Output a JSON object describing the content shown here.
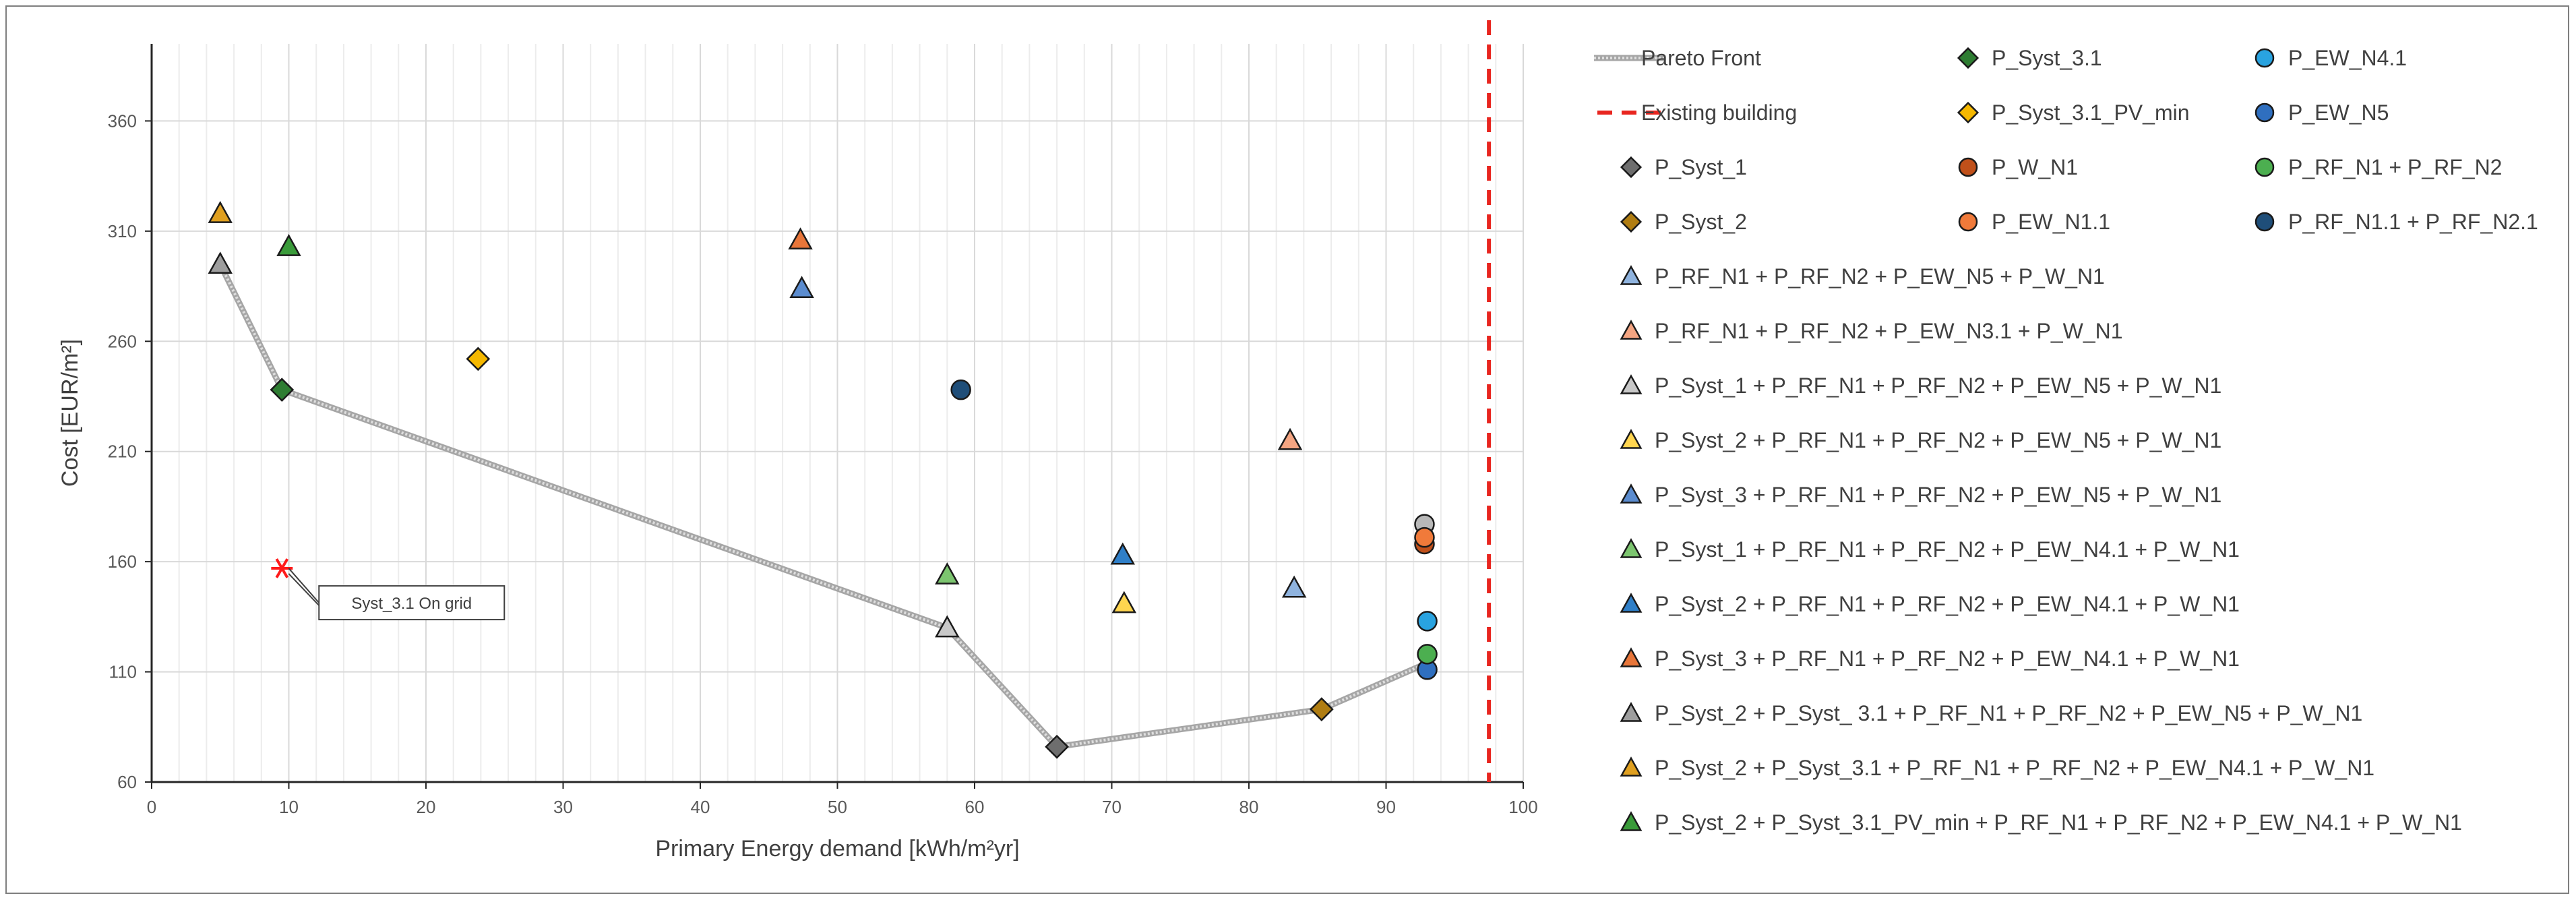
{
  "chart_data": {
    "type": "scatter",
    "title": "",
    "xlabel": "Primary Energy demand [kWh/m²yr]",
    "ylabel": "Cost [EUR/m²]",
    "xlim": [
      0,
      100
    ],
    "ylim": [
      60,
      395
    ],
    "x_ticks": [
      "0",
      "10",
      "20",
      "30",
      "40",
      "50",
      "60",
      "70",
      "80",
      "90",
      "100"
    ],
    "y_ticks": [
      "60",
      "110",
      "160",
      "210",
      "260",
      "310",
      "360"
    ],
    "x_tick_values": [
      0,
      10,
      20,
      30,
      40,
      50,
      60,
      70,
      80,
      90,
      100
    ],
    "y_tick_values": [
      60,
      110,
      160,
      210,
      260,
      310,
      360
    ],
    "grid": true,
    "pareto_front": {
      "name": "Pareto Front",
      "points": [
        [
          5,
          295
        ],
        [
          9.5,
          238
        ],
        [
          58,
          130
        ],
        [
          66,
          76
        ],
        [
          85.3,
          93
        ],
        [
          93,
          114
        ]
      ]
    },
    "existing_building": {
      "name": "Existing building",
      "x": 97.5
    },
    "annotation": {
      "text": "Syst_3.1 On grid",
      "x": 9.5,
      "y": 157
    },
    "series": [
      {
        "name": "P_Syst_3.1",
        "marker": "diamond",
        "color": "#2e7d32",
        "points": [
          [
            9.5,
            238
          ]
        ]
      },
      {
        "name": "P_EW_N4.1",
        "marker": "circle",
        "color": "#29a3e0",
        "points": [
          [
            93,
            133
          ]
        ]
      },
      {
        "name": "P_Syst_3.1_PV_min",
        "marker": "diamond",
        "color": "#f5b800",
        "points": [
          [
            23.8,
            252
          ]
        ]
      },
      {
        "name": "P_EW_N5",
        "marker": "circle",
        "color": "#2f6fbf",
        "points": [
          [
            93,
            111
          ]
        ]
      },
      {
        "name": "P_Syst_1",
        "marker": "diamond",
        "color": "#6e6e6e",
        "points": [
          [
            66,
            76
          ]
        ]
      },
      {
        "name": "P_W_N1",
        "marker": "circle",
        "color": "#c0501a",
        "points": [
          [
            92.8,
            168
          ]
        ]
      },
      {
        "name": "P_RF_N1 + P_RF_N2",
        "marker": "circle",
        "color": "#4caf50",
        "points": [
          [
            93,
            118
          ]
        ]
      },
      {
        "name": "P_Syst_2",
        "marker": "diamond",
        "color": "#b07d12",
        "points": [
          [
            85.3,
            93
          ]
        ]
      },
      {
        "name": "P_EW_N1.1",
        "marker": "circle",
        "color": "#f07a3a",
        "points": [
          [
            92.8,
            171
          ]
        ]
      },
      {
        "name": "P_RF_N1.1 + P_RF_N2.1",
        "marker": "circle",
        "color": "#1f4e79",
        "points": [
          [
            59,
            238
          ]
        ]
      },
      {
        "name": "P_RF_N1 + P_RF_N2 + P_EW_N5 + P_W_N1",
        "marker": "triangle",
        "color": "#8fb3de",
        "points": [
          [
            83.3,
            148
          ]
        ]
      },
      {
        "name": "P_RF_N1 + P_RF_N2 + P_EW_N3.1 + P_W_N1",
        "marker": "triangle",
        "color": "#f4a582",
        "points": [
          [
            83,
            215
          ]
        ]
      },
      {
        "name": "P_Syst_1 + P_RF_N1 + P_RF_N2 + P_EW_N5 + P_W_N1",
        "marker": "triangle",
        "color": "#c8c8c8",
        "points": [
          [
            58,
            130
          ]
        ]
      },
      {
        "name": "P_Syst_2 + P_RF_N1 + P_RF_N2 + P_EW_N5 + P_W_N1",
        "marker": "triangle",
        "color": "#ffd54f",
        "points": [
          [
            70.9,
            141
          ]
        ]
      },
      {
        "name": "P_Syst_3 + P_RF_N1 + P_RF_N2 + P_EW_N5 + P_W_N1",
        "marker": "triangle",
        "color": "#5b8ccf",
        "points": [
          [
            47.4,
            284
          ]
        ]
      },
      {
        "name": "P_Syst_1 + P_RF_N1 + P_RF_N2 + P_EW_N4.1 + P_W_N1",
        "marker": "triangle",
        "color": "#7cc56f",
        "points": [
          [
            58,
            154
          ]
        ]
      },
      {
        "name": "P_Syst_2 + P_RF_N1 + P_RF_N2 + P_EW_N4.1 + P_W_N1",
        "marker": "triangle",
        "color": "#2f7fc8",
        "points": [
          [
            70.8,
            163
          ]
        ]
      },
      {
        "name": "P_Syst_3 + P_RF_N1 + P_RF_N2 + P_EW_N4.1 + P_W_N1",
        "marker": "triangle",
        "color": "#e8763a",
        "points": [
          [
            47.3,
            306
          ]
        ]
      },
      {
        "name": "P_Syst_2 + P_Syst_ 3.1 + P_RF_N1 + P_RF_N2 + P_EW_N5 + P_W_N1",
        "marker": "triangle",
        "color": "#9e9e9e",
        "points": [
          [
            5,
            295
          ]
        ]
      },
      {
        "name": "P_Syst_2 + P_Syst_3.1 + P_RF_N1 + P_RF_N2 + P_EW_N4.1 + P_W_N1",
        "marker": "triangle",
        "color": "#e0a020",
        "points": [
          [
            5,
            318
          ]
        ]
      },
      {
        "name": "P_Syst_2 + P_Syst_3.1_PV_min + P_RF_N1 + P_RF_N2 + P_EW_N4.1 + P_W_N1",
        "marker": "triangle",
        "color": "#3a9b3a",
        "points": [
          [
            10,
            303
          ]
        ]
      }
    ],
    "extra_points": [
      {
        "series": "P_Syst_1 + P_RF_N1 + P_RF_N2 + P_EW_N5 + P_W_N1",
        "marker": "circle",
        "color": "#b8b8b8",
        "x": 92.8,
        "y": 177
      }
    ]
  }
}
